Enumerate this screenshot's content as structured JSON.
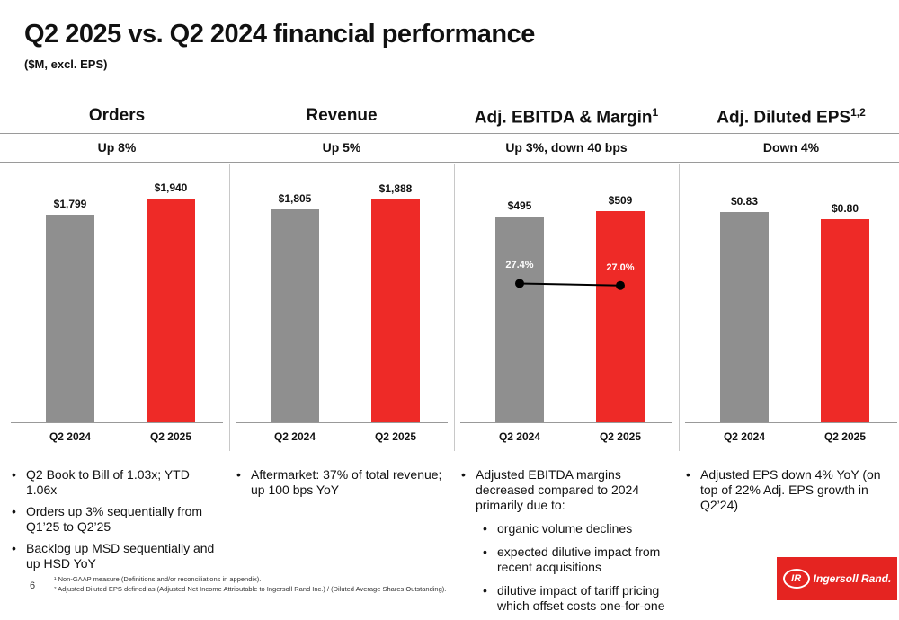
{
  "title": "Q2 2025 vs. Q2 2024 financial performance",
  "subtitle": "($M, excl. EPS)",
  "colors": {
    "prior": "#8f8f8f",
    "current": "#ee2a27"
  },
  "chart_data": [
    {
      "type": "bar",
      "title": "Orders",
      "change": "Up 8%",
      "categories": [
        "Q2 2024",
        "Q2 2025"
      ],
      "values": [
        1799,
        1940
      ],
      "value_labels": [
        "$1,799",
        "$1,940"
      ],
      "ylim": [
        0,
        2200
      ]
    },
    {
      "type": "bar",
      "title": "Revenue",
      "change": "Up 5%",
      "categories": [
        "Q2 2024",
        "Q2 2025"
      ],
      "values": [
        1805,
        1888
      ],
      "value_labels": [
        "$1,805",
        "$1,888"
      ],
      "ylim": [
        0,
        2150
      ]
    },
    {
      "type": "bar",
      "title": "Adj. EBITDA & Margin",
      "title_sup": "1",
      "change": "Up 3%, down 40 bps",
      "categories": [
        "Q2 2024",
        "Q2 2025"
      ],
      "values": [
        495,
        509
      ],
      "value_labels": [
        "$495",
        "$509"
      ],
      "ylim": [
        0,
        610
      ],
      "margin_series": {
        "values": [
          27.4,
          27.0
        ],
        "labels": [
          "27.4%",
          "27.0%"
        ],
        "ylim": [
          0,
          50
        ]
      }
    },
    {
      "type": "bar",
      "title": "Adj. Diluted EPS",
      "title_sup": "1,2",
      "change": "Down 4%",
      "categories": [
        "Q2 2024",
        "Q2 2025"
      ],
      "values": [
        0.83,
        0.8
      ],
      "value_labels": [
        "$0.83",
        "$0.80"
      ],
      "ylim": [
        0,
        1.0
      ]
    }
  ],
  "bullets": [
    [
      {
        "text": "Q2 Book to Bill of 1.03x; YTD 1.06x"
      },
      {
        "text": "Orders up 3% sequentially from Q1’25 to Q2’25"
      },
      {
        "text": "Backlog up MSD sequentially and up HSD YoY"
      }
    ],
    [
      {
        "text": "Aftermarket: 37% of total revenue; up 100 bps YoY"
      }
    ],
    [
      {
        "text": "Adjusted EBITDA margins decreased compared to 2024 primarily due to:"
      },
      {
        "text": "organic volume declines",
        "sub": true
      },
      {
        "text": "expected dilutive impact from recent acquisitions",
        "sub": true
      },
      {
        "text": "dilutive impact of tariff pricing which offset costs one-for-one",
        "sub": true
      }
    ],
    [
      {
        "text": "Adjusted EPS down 4% YoY (on top of 22% Adj. EPS growth in Q2’24)"
      }
    ]
  ],
  "footnotes": [
    "¹ Non-GAAP measure (Definitions and/or reconciliations in appendix).",
    "² Adjusted Diluted EPS defined as (Adjusted Net Income Attributable to Ingersoll Rand Inc.) / (Diluted Average Shares Outstanding)."
  ],
  "page_number": "6",
  "logo": {
    "mark": "IR",
    "text": "Ingersoll Rand."
  }
}
